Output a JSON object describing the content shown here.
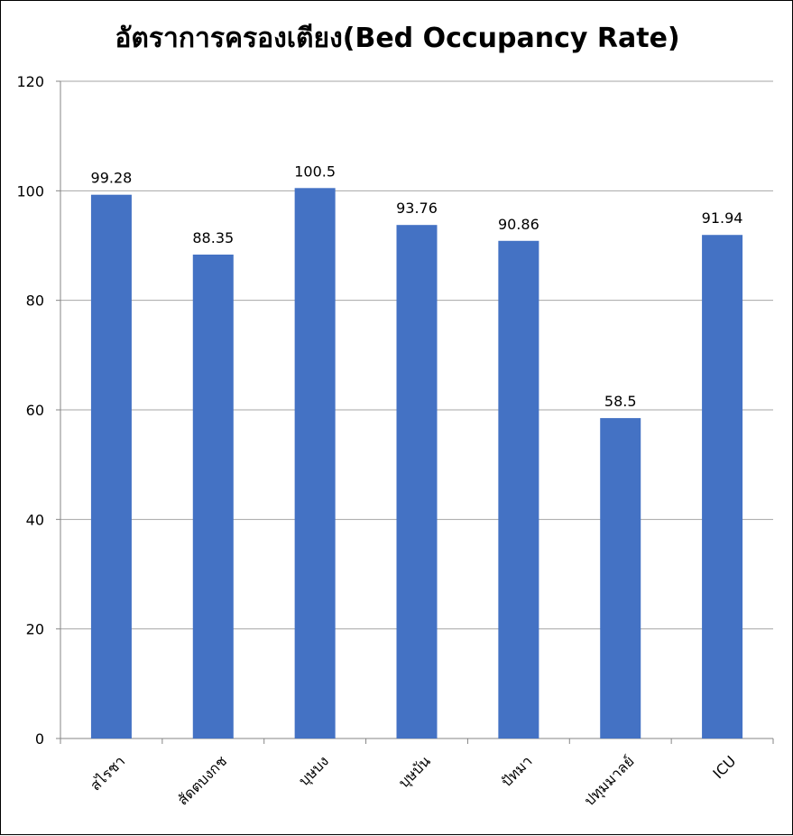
{
  "chart_data": {
    "type": "bar",
    "title": "อัตราการครองเตียง(Bed Occupancy Rate)",
    "categories": [
      "สไรชา",
      "สัดตบงกช",
      "บุษบง",
      "บุษบัน",
      "ปัทมา",
      "ปทุมมาลย์",
      "ICU"
    ],
    "values": [
      99.28,
      88.35,
      100.5,
      93.76,
      90.86,
      58.5,
      91.94
    ],
    "value_labels": [
      "99.28",
      "88.35",
      "100.5",
      "93.76",
      "90.86",
      "58.5",
      "91.94"
    ],
    "yticks": [
      "0",
      "20",
      "40",
      "60",
      "80",
      "100",
      "120"
    ],
    "ylim": [
      0,
      120
    ],
    "grid": true,
    "legend": "none",
    "bar_color": "#4472C4",
    "grid_color": "#a6a6a6"
  }
}
